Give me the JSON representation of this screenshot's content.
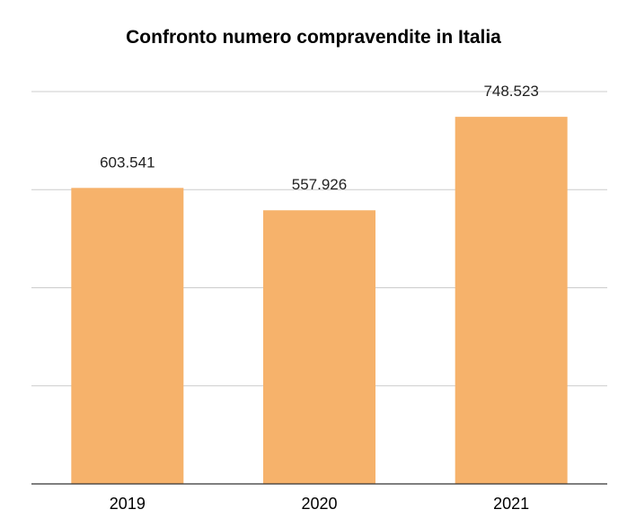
{
  "chart_data": {
    "type": "bar",
    "title": "Confronto numero compravendite in Italia",
    "xlabel": "",
    "ylabel": "",
    "categories": [
      "2019",
      "2020",
      "2021"
    ],
    "values": [
      603541,
      557926,
      748523
    ],
    "value_labels": [
      "603.541",
      "557.926",
      "748.523"
    ],
    "ylim": [
      0,
      800000
    ],
    "y_grid_step": 200000,
    "grid": true,
    "y_tick_labels_visible": false,
    "legend": "none",
    "bar_color": "#f6b26b",
    "grid_color": "#cccccc",
    "axis_color": "#333333"
  }
}
